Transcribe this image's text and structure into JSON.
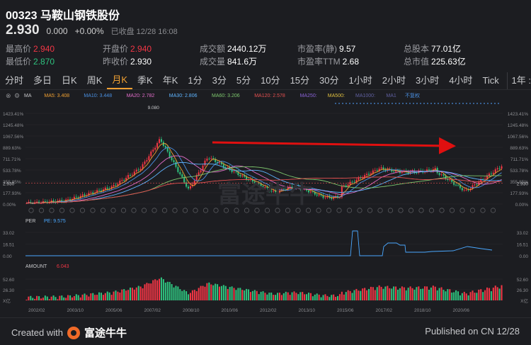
{
  "header": {
    "code": "00323",
    "name": "马鞍山钢铁股份",
    "price": "2.930",
    "change": "0.000",
    "change_pct": "+0.00%",
    "status": "已收盘 12/28 16:08"
  },
  "stats": [
    {
      "label": "最高价",
      "value": "2.940",
      "tone": "up"
    },
    {
      "label": "开盘价",
      "value": "2.940",
      "tone": "up"
    },
    {
      "label": "成交额",
      "value": "2440.12万",
      "tone": ""
    },
    {
      "label": "市盈率(静)",
      "value": "9.57",
      "tone": ""
    },
    {
      "label": "总股本",
      "value": "77.01亿",
      "tone": ""
    },
    {
      "label": "最低价",
      "value": "2.870",
      "tone": "dn"
    },
    {
      "label": "昨收价",
      "value": "2.930",
      "tone": ""
    },
    {
      "label": "成交量",
      "value": "841.6万",
      "tone": ""
    },
    {
      "label": "市盈率TTM",
      "value": "2.68",
      "tone": ""
    },
    {
      "label": "总市值",
      "value": "225.63亿",
      "tone": ""
    }
  ],
  "tabs": [
    "分时",
    "多日",
    "日K",
    "周K",
    "月K",
    "季K",
    "年K",
    "1分",
    "3分",
    "5分",
    "10分",
    "15分",
    "30分",
    "1小时",
    "2小时",
    "3小时",
    "4小时",
    "Tick"
  ],
  "active_tab": "月K",
  "year_tab": "1年 :",
  "ma_legend": [
    {
      "text": "MA",
      "color": "#c8c9cc"
    },
    {
      "text": "MA5: 3.408",
      "color": "#f0a032"
    },
    {
      "text": "MA10: 3.448",
      "color": "#4a90e2"
    },
    {
      "text": "MA20: 2.782",
      "color": "#e06cc8"
    },
    {
      "text": "MA30: 2.806",
      "color": "#5fb4ff"
    },
    {
      "text": "MA60: 3.206",
      "color": "#7ec86e"
    },
    {
      "text": "MA120: 2.578",
      "color": "#e45050"
    },
    {
      "text": "MA250:",
      "color": "#8a62d6"
    },
    {
      "text": "MA500:",
      "color": "#e0c040"
    },
    {
      "text": "MA1000:",
      "color": "#6060a0"
    },
    {
      "text": "MA1",
      "color": "#6060a0"
    },
    {
      "text": "不复权",
      "color": "#4a90e2"
    }
  ],
  "per_legend": {
    "label": "PER",
    "value": "PE: 9.575"
  },
  "amount_legend": {
    "label": "AMOUNT",
    "value": "6.043"
  },
  "colors": {
    "up": "#f23645",
    "down": "#2ec27e",
    "accent": "#f0a032",
    "bg": "#1c1d21",
    "arrow": "#e01010"
  },
  "icons": [
    "close-icon",
    "settings-icon",
    "eye-icon",
    "dropdown-icon",
    "event-marker-icon",
    "futu-logo-icon"
  ],
  "chart_data": {
    "type": "candlestick",
    "yaxis_labels": [
      "1423.41%",
      "1245.48%",
      "1067.56%",
      "889.63%",
      "711.71%",
      "533.78%",
      "355.85%",
      "177.93%",
      "0.00%"
    ],
    "current_price_label": "2.930",
    "peak_label": "9.080",
    "x_labels": [
      "2002/02",
      "2003/10",
      "2005/06",
      "2007/02",
      "2008/10",
      "2010/06",
      "2012/02",
      "2013/10",
      "2015/06",
      "2017/02",
      "2018/10",
      "2020/06"
    ],
    "per_yaxis": [
      "33.02",
      "16.51",
      "0.00"
    ],
    "amount_yaxis": [
      "52.60",
      "26.30",
      "X亿"
    ],
    "watermark": "富途牛牛",
    "trend_arrow": "→"
  },
  "footer": {
    "created_with": "Created with",
    "brand": "富途牛牛",
    "published": "Published on CN 12/28"
  }
}
